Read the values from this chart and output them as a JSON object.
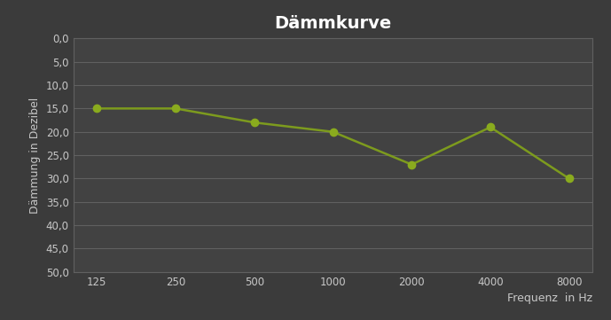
{
  "title": "Dämmkurve",
  "xlabel": "Frequenz  in Hz",
  "ylabel": "Dämmung in Dezibel",
  "x_categories": [
    125,
    250,
    500,
    1000,
    2000,
    4000,
    8000
  ],
  "x_labels": [
    "125",
    "250",
    "500",
    "1000",
    "2000",
    "4000",
    "8000"
  ],
  "y_values": [
    15,
    15,
    18,
    20,
    27,
    19,
    30
  ],
  "y_min": 0,
  "y_max": 50,
  "y_ticks": [
    0,
    5,
    10,
    15,
    20,
    25,
    30,
    35,
    40,
    45,
    50
  ],
  "y_tick_labels": [
    "0,0",
    "5,0",
    "10,0",
    "15,0",
    "20,0",
    "25,0",
    "30,0",
    "35,0",
    "40,0",
    "45,0",
    "50,0"
  ],
  "line_color": "#7d9b1e",
  "marker_color": "#8aab1e",
  "bg_color": "#3b3b3b",
  "plot_bg_color": "#424242",
  "grid_color": "#606060",
  "title_color": "#ffffff",
  "label_color": "#c8c8c8",
  "tick_color": "#c8c8c8",
  "title_fontsize": 14,
  "label_fontsize": 9,
  "tick_fontsize": 8.5,
  "line_width": 1.8,
  "marker_size": 6
}
